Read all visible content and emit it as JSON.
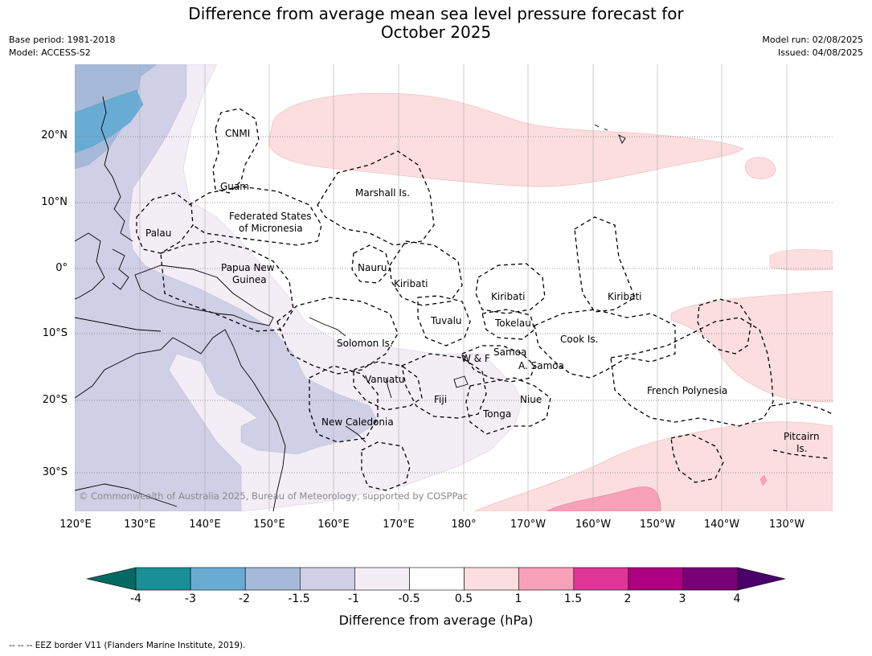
{
  "title": {
    "line1": "Difference from average mean sea level pressure forecast for",
    "line2": "October 2025"
  },
  "meta_left": {
    "base_period": "Base period: 1981-2018",
    "model": "Model: ACCESS-S2"
  },
  "meta_right": {
    "model_run": "Model run: 02/08/2025",
    "issued": "Issued: 04/08/2025"
  },
  "lat_labels": [
    "20°N",
    "10°N",
    "0°",
    "10°S",
    "20°S",
    "30°S"
  ],
  "lon_labels": [
    "120°E",
    "130°E",
    "140°E",
    "150°E",
    "160°E",
    "170°E",
    "180°",
    "170°W",
    "160°W",
    "150°W",
    "140°W",
    "130°W"
  ],
  "regions": {
    "cnmi": "CNMI",
    "guam": "Guam",
    "marshall": "Marshall Is.",
    "fsm1": "Federated States",
    "fsm2": "of Micronesia",
    "palau": "Palau",
    "png1": "Papua New",
    "png2": "Guinea",
    "nauru": "Nauru",
    "kiribati1": "Kiribati",
    "kiribati2": "Kiribati",
    "kiribati3": "Kiribati",
    "tuvalu": "Tuvalu",
    "tokelau": "Tokelau",
    "cook": "Cook Is.",
    "solomon": "Solomon Is.",
    "samoa": "Samoa",
    "wf": "W & F",
    "asamoa": "A. Samoa",
    "vanuatu": "Vanuatu",
    "fiji": "Fiji",
    "niue": "Niue",
    "tonga": "Tonga",
    "fp": "French Polynesia",
    "newcal": "New Caledonia",
    "pitcairn1": "Pitcairn",
    "pitcairn2": "Is."
  },
  "copyright": "© Commonwealth of Australia 2025, Bureau of Meteorology, supported by COSPPac",
  "colorbar": {
    "colors": [
      "#1a9096",
      "#69acd3",
      "#a6b9d9",
      "#cfcfe6",
      "#f3edf6",
      "#ffffff",
      "#fddede",
      "#f9a1b8",
      "#dd3697",
      "#ae0082",
      "#7a0077"
    ],
    "low_extend_color": "#026a60",
    "high_extend_color": "#4a006a",
    "labels": [
      "-4",
      "-3",
      "-2",
      "-1.5",
      "-1",
      "-0.5",
      "0.5",
      "1",
      "1.5",
      "2",
      "3",
      "4"
    ],
    "title": "Difference from average (hPa)"
  },
  "footnote": "--  --  -- EEZ border V11 (Flanders Marine Institute, 2019)."
}
